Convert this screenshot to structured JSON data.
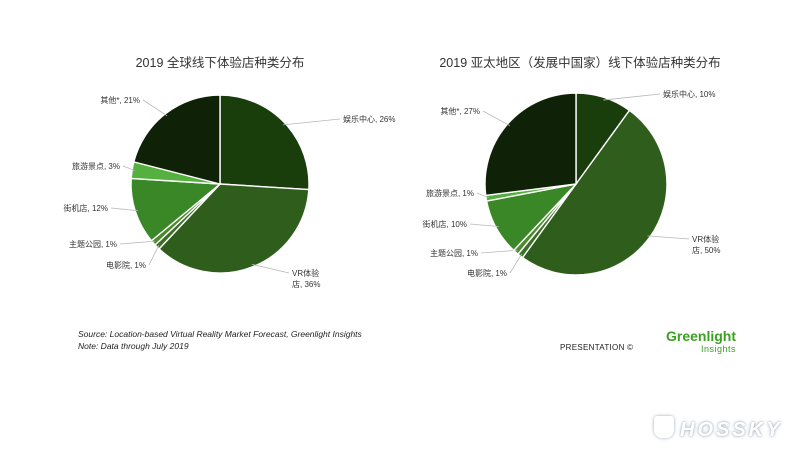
{
  "chart_data": [
    {
      "type": "pie",
      "title": "2019 全球线下体验店种类分布",
      "slices": [
        {
          "label": "娱乐中心, 26%",
          "value": 26,
          "color": "#1a3d0c"
        },
        {
          "label": "VR体验店, 36%",
          "label_lines": [
            "VR体验",
            "店, 36%"
          ],
          "value": 36,
          "color": "#2f5e1c"
        },
        {
          "label": "电影院, 1%",
          "value": 1,
          "color": "#3b6e26"
        },
        {
          "label": "主题公园, 1%",
          "value": 1,
          "color": "#4c8a2c"
        },
        {
          "label": "街机店, 12%",
          "value": 12,
          "color": "#3a8727"
        },
        {
          "label": "旅游景点, 3%",
          "value": 3,
          "color": "#55b040"
        },
        {
          "label": "其他*, 21%",
          "value": 21,
          "color": "#0f2207"
        }
      ]
    },
    {
      "type": "pie",
      "title": "2019 亚太地区（发展中国家）线下体验店种类分布",
      "slices": [
        {
          "label": "娱乐中心, 10%",
          "value": 10,
          "color": "#1a3d0c"
        },
        {
          "label": "VR体验店, 50%",
          "label_lines": [
            "VR体验",
            "店, 50%"
          ],
          "value": 50,
          "color": "#2f5e1c"
        },
        {
          "label": "电影院, 1%",
          "value": 1,
          "color": "#3b6e26"
        },
        {
          "label": "主题公园, 1%",
          "value": 1,
          "color": "#4c8a2c"
        },
        {
          "label": "街机店, 10%",
          "value": 10,
          "color": "#3a8727"
        },
        {
          "label": "旅游景点, 1%",
          "value": 1,
          "color": "#55b040"
        },
        {
          "label": "其他*, 27%",
          "value": 27,
          "color": "#0f2207"
        }
      ]
    }
  ],
  "footer": {
    "source": "Source: Location-based Virtual Reality Market Forecast, Greenlight Insights",
    "note": "Note: Data through July 2019",
    "presentation": "PRESENTATION ©",
    "logo_main": "Greenlight",
    "logo_sub": "Insights",
    "watermark": "HOSSKY"
  }
}
